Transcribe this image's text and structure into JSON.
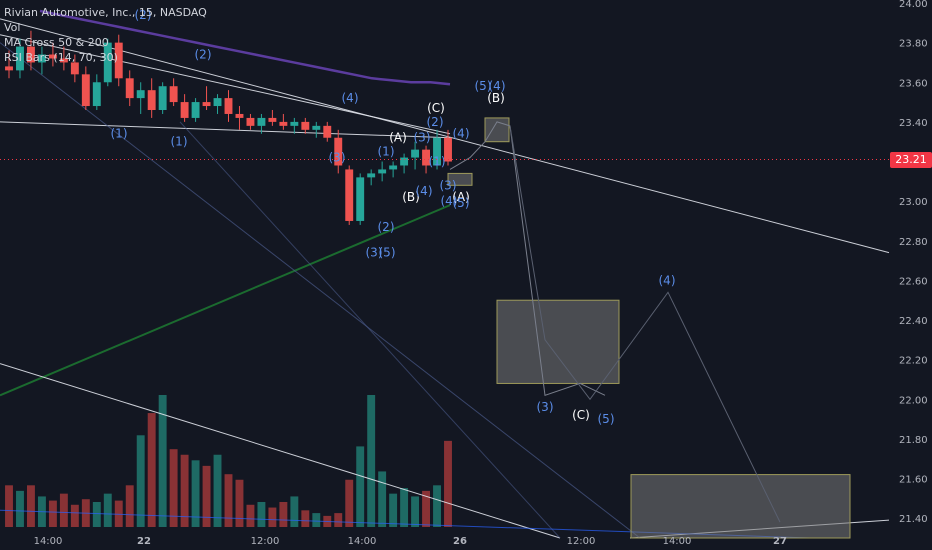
{
  "legend": {
    "title": "Rivian Automotive, Inc., 15, NASDAQ",
    "indicators": [
      "Vol",
      "MA Cross 50 & 200",
      "RSI Bars (14, 70, 30)"
    ]
  },
  "colors": {
    "background": "#131722",
    "up": "#26a69a",
    "down": "#ef5350",
    "ma_fast": "#5b3c9e",
    "ma_slow": "#1b6b2f",
    "trendline": "#e0e3eb",
    "wave_blue": "#5b8de8",
    "wave_white": "#ffffff",
    "current_price_line": "#f23645",
    "box_border": "#9e9a5a",
    "axis_text": "#b2b5be"
  },
  "current_price": "23.21",
  "chart_data": {
    "type": "candlestick",
    "symbol": "RIVN",
    "interval": "15",
    "exchange": "NASDAQ",
    "y_axis": {
      "ticks": [
        "24.00",
        "23.80",
        "23.60",
        "23.40",
        "23.20",
        "23.00",
        "22.80",
        "22.60",
        "22.40",
        "22.20",
        "22.00",
        "21.80",
        "21.60",
        "21.40"
      ],
      "range": [
        21.3,
        24.0
      ]
    },
    "x_axis": {
      "ticks": [
        "14:00",
        "22",
        "12:00",
        "14:00",
        "26",
        "12:00",
        "14:00",
        "27"
      ]
    },
    "candles": [
      {
        "o": 23.68,
        "h": 23.76,
        "l": 23.62,
        "c": 23.66
      },
      {
        "o": 23.66,
        "h": 23.82,
        "l": 23.62,
        "c": 23.78
      },
      {
        "o": 23.78,
        "h": 23.86,
        "l": 23.66,
        "c": 23.7
      },
      {
        "o": 23.7,
        "h": 23.78,
        "l": 23.64,
        "c": 23.74
      },
      {
        "o": 23.74,
        "h": 23.8,
        "l": 23.68,
        "c": 23.72
      },
      {
        "o": 23.72,
        "h": 23.78,
        "l": 23.66,
        "c": 23.7
      },
      {
        "o": 23.7,
        "h": 23.74,
        "l": 23.6,
        "c": 23.64
      },
      {
        "o": 23.64,
        "h": 23.68,
        "l": 23.46,
        "c": 23.48
      },
      {
        "o": 23.48,
        "h": 23.64,
        "l": 23.46,
        "c": 23.6
      },
      {
        "o": 23.6,
        "h": 23.82,
        "l": 23.58,
        "c": 23.8
      },
      {
        "o": 23.8,
        "h": 23.84,
        "l": 23.58,
        "c": 23.62
      },
      {
        "o": 23.62,
        "h": 23.66,
        "l": 23.48,
        "c": 23.52
      },
      {
        "o": 23.52,
        "h": 23.6,
        "l": 23.44,
        "c": 23.56
      },
      {
        "o": 23.56,
        "h": 23.62,
        "l": 23.42,
        "c": 23.46
      },
      {
        "o": 23.46,
        "h": 23.6,
        "l": 23.44,
        "c": 23.58
      },
      {
        "o": 23.58,
        "h": 23.62,
        "l": 23.48,
        "c": 23.5
      },
      {
        "o": 23.5,
        "h": 23.54,
        "l": 23.4,
        "c": 23.42
      },
      {
        "o": 23.42,
        "h": 23.52,
        "l": 23.4,
        "c": 23.5
      },
      {
        "o": 23.5,
        "h": 23.58,
        "l": 23.46,
        "c": 23.48
      },
      {
        "o": 23.48,
        "h": 23.54,
        "l": 23.44,
        "c": 23.52
      },
      {
        "o": 23.52,
        "h": 23.56,
        "l": 23.4,
        "c": 23.44
      },
      {
        "o": 23.44,
        "h": 23.48,
        "l": 23.36,
        "c": 23.42
      },
      {
        "o": 23.42,
        "h": 23.44,
        "l": 23.36,
        "c": 23.38
      },
      {
        "o": 23.38,
        "h": 23.44,
        "l": 23.34,
        "c": 23.42
      },
      {
        "o": 23.42,
        "h": 23.46,
        "l": 23.38,
        "c": 23.4
      },
      {
        "o": 23.4,
        "h": 23.44,
        "l": 23.36,
        "c": 23.38
      },
      {
        "o": 23.38,
        "h": 23.42,
        "l": 23.34,
        "c": 23.4
      },
      {
        "o": 23.4,
        "h": 23.42,
        "l": 23.34,
        "c": 23.36
      },
      {
        "o": 23.36,
        "h": 23.4,
        "l": 23.32,
        "c": 23.38
      },
      {
        "o": 23.38,
        "h": 23.4,
        "l": 23.3,
        "c": 23.32
      },
      {
        "o": 23.32,
        "h": 23.36,
        "l": 23.14,
        "c": 23.18
      },
      {
        "o": 23.16,
        "h": 23.18,
        "l": 22.88,
        "c": 22.9
      },
      {
        "o": 22.9,
        "h": 23.14,
        "l": 22.88,
        "c": 23.12
      },
      {
        "o": 23.12,
        "h": 23.16,
        "l": 23.08,
        "c": 23.14
      },
      {
        "o": 23.14,
        "h": 23.2,
        "l": 23.1,
        "c": 23.16
      },
      {
        "o": 23.16,
        "h": 23.2,
        "l": 23.12,
        "c": 23.18
      },
      {
        "o": 23.18,
        "h": 23.24,
        "l": 23.14,
        "c": 23.22
      },
      {
        "o": 23.22,
        "h": 23.3,
        "l": 23.16,
        "c": 23.26
      },
      {
        "o": 23.26,
        "h": 23.28,
        "l": 23.14,
        "c": 23.18
      },
      {
        "o": 23.18,
        "h": 23.36,
        "l": 23.16,
        "c": 23.32
      },
      {
        "o": 23.32,
        "h": 23.36,
        "l": 23.18,
        "c": 23.2
      }
    ],
    "volumes": [
      30,
      26,
      30,
      22,
      19,
      24,
      16,
      20,
      18,
      24,
      19,
      30,
      66,
      82,
      95,
      56,
      52,
      48,
      44,
      52,
      38,
      34,
      16,
      18,
      14,
      18,
      22,
      12,
      10,
      8,
      10,
      34,
      58,
      95,
      40,
      24,
      28,
      22,
      26,
      30,
      62
    ],
    "ma_fast": [
      23.96,
      23.94,
      23.92,
      23.9,
      23.88,
      23.86,
      23.84,
      23.82,
      23.8,
      23.78,
      23.76,
      23.74,
      23.72,
      23.7,
      23.68,
      23.66,
      23.64,
      23.62,
      23.61,
      23.6,
      23.6,
      23.59
    ],
    "ma_slow_range": [
      22.02,
      22.98
    ],
    "trendlines": [
      {
        "x1": 0,
        "y1": 23.92,
        "x2": 889,
        "y2": 22.74
      },
      {
        "x1": 0,
        "y1": 23.84,
        "x2": 450,
        "y2": 23.34
      },
      {
        "x1": 0,
        "y1": 23.4,
        "x2": 450,
        "y2": 23.32
      },
      {
        "x1": 0,
        "y1": 22.18,
        "x2": 560,
        "y2": 21.3
      },
      {
        "x1": 630,
        "y1": 21.3,
        "x2": 889,
        "y2": 21.39
      }
    ],
    "projection_path": [
      [
        450,
        23.16
      ],
      [
        470,
        23.22
      ],
      [
        485,
        23.3
      ],
      [
        497,
        23.4
      ],
      [
        510,
        23.38
      ],
      [
        545,
        22.02
      ],
      [
        580,
        22.08
      ],
      [
        605,
        22.02
      ]
    ],
    "projection_path2": [
      [
        510,
        23.38
      ],
      [
        545,
        22.3
      ],
      [
        590,
        22.0
      ],
      [
        668,
        22.54
      ],
      [
        780,
        21.38
      ]
    ],
    "boxes": [
      {
        "x1": 485,
        "x2": 509,
        "y1": 23.3,
        "y2": 23.42
      },
      {
        "x1": 448,
        "x2": 472,
        "y1": 23.08,
        "y2": 23.14
      },
      {
        "x1": 497,
        "x2": 619,
        "y1": 22.08,
        "y2": 22.5
      },
      {
        "x1": 631,
        "x2": 850,
        "y1": 21.3,
        "y2": 21.62
      }
    ],
    "wave_labels": [
      {
        "text": "(2)",
        "x": 143,
        "y": 23.92,
        "color": "blue"
      },
      {
        "text": "(2)",
        "x": 203,
        "y": 23.72,
        "color": "blue"
      },
      {
        "text": "(1)",
        "x": 119,
        "y": 23.32,
        "color": "blue"
      },
      {
        "text": "(1)",
        "x": 179,
        "y": 23.28,
        "color": "blue"
      },
      {
        "text": "(4)",
        "x": 350,
        "y": 23.5,
        "color": "blue"
      },
      {
        "text": "(3)",
        "x": 337,
        "y": 23.2,
        "color": "blue"
      },
      {
        "text": "(A)",
        "x": 398,
        "y": 23.3,
        "color": "white"
      },
      {
        "text": "(3)",
        "x": 422,
        "y": 23.3,
        "color": "blue"
      },
      {
        "text": "(1)",
        "x": 386,
        "y": 23.23,
        "color": "blue"
      },
      {
        "text": "(B)",
        "x": 411,
        "y": 23.0,
        "color": "white"
      },
      {
        "text": "(4)",
        "x": 424,
        "y": 23.03,
        "color": "blue"
      },
      {
        "text": "(1)",
        "x": 437,
        "y": 23.18,
        "color": "blue"
      },
      {
        "text": "(2)",
        "x": 435,
        "y": 23.38,
        "color": "blue"
      },
      {
        "text": "(C)",
        "x": 436,
        "y": 23.45,
        "color": "white"
      },
      {
        "text": "(4)",
        "x": 461,
        "y": 23.32,
        "color": "blue"
      },
      {
        "text": "(3)",
        "x": 448,
        "y": 23.06,
        "color": "blue"
      },
      {
        "text": "(4)",
        "x": 449,
        "y": 22.98,
        "color": "blue"
      },
      {
        "text": "(A)",
        "x": 461,
        "y": 23.0,
        "color": "white"
      },
      {
        "text": "(5)",
        "x": 461,
        "y": 22.97,
        "color": "blue"
      },
      {
        "text": "(2)",
        "x": 386,
        "y": 22.85,
        "color": "blue"
      },
      {
        "text": "(3)",
        "x": 374,
        "y": 22.72,
        "color": "blue"
      },
      {
        "text": "(5)",
        "x": 387,
        "y": 22.72,
        "color": "blue"
      },
      {
        "text": "(5)",
        "x": 483,
        "y": 23.56,
        "color": "blue"
      },
      {
        "text": "(4)",
        "x": 497,
        "y": 23.56,
        "color": "blue"
      },
      {
        "text": "(B)",
        "x": 496,
        "y": 23.5,
        "color": "white"
      },
      {
        "text": "(4)",
        "x": 667,
        "y": 22.58,
        "color": "blue"
      },
      {
        "text": "(3)",
        "x": 545,
        "y": 21.94,
        "color": "blue"
      },
      {
        "text": "(C)",
        "x": 581,
        "y": 21.9,
        "color": "white"
      },
      {
        "text": "(5)",
        "x": 606,
        "y": 21.88,
        "color": "blue"
      }
    ]
  }
}
